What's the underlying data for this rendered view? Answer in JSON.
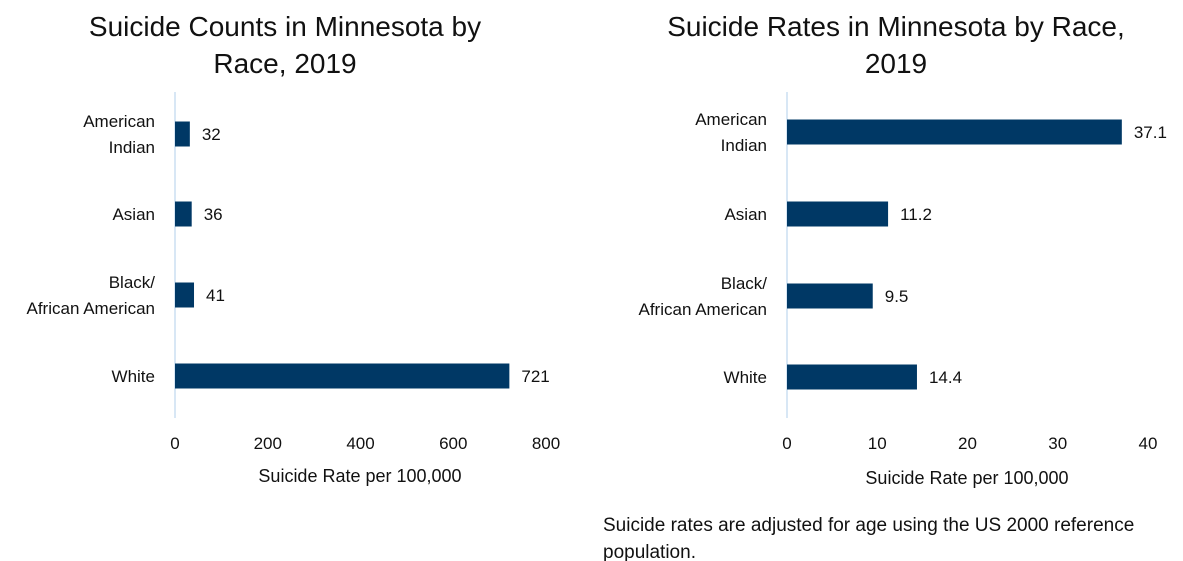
{
  "chart_data": [
    {
      "type": "bar",
      "orientation": "horizontal",
      "title": "Suicide Counts in Minnesota by Race, 2019",
      "title_lines": [
        "Suicide Counts in Minnesota by",
        "Race, 2019"
      ],
      "categories": [
        [
          "American",
          "Indian"
        ],
        [
          "Asian"
        ],
        [
          "Black/",
          "African American"
        ],
        [
          "White"
        ]
      ],
      "values": [
        32,
        36,
        41,
        721
      ],
      "data_labels": [
        "32",
        "36",
        "41",
        "721"
      ],
      "xlabel": "Suicide Rate per 100,000",
      "xlim": [
        0,
        800
      ],
      "xticks": [
        0,
        200,
        400,
        600,
        800
      ],
      "grid": false,
      "legend": "none",
      "bar_color": "#003865"
    },
    {
      "type": "bar",
      "orientation": "horizontal",
      "title": "Suicide Rates in Minnesota by Race, 2019",
      "title_lines": [
        "Suicide Rates in Minnesota by Race,",
        "2019"
      ],
      "categories": [
        [
          "American",
          "Indian"
        ],
        [
          "Asian"
        ],
        [
          "Black/",
          "African American"
        ],
        [
          "White"
        ]
      ],
      "values": [
        37.1,
        11.2,
        9.5,
        14.4
      ],
      "data_labels": [
        "37.1",
        "11.2",
        "9.5",
        "14.4"
      ],
      "xlabel": "Suicide Rate per 100,000",
      "xlim": [
        0,
        40
      ],
      "xticks": [
        0,
        10,
        20,
        30,
        40
      ],
      "grid": false,
      "legend": "none",
      "bar_color": "#003865"
    }
  ],
  "footnote": "Suicide rates are adjusted for age using the US 2000 reference population."
}
